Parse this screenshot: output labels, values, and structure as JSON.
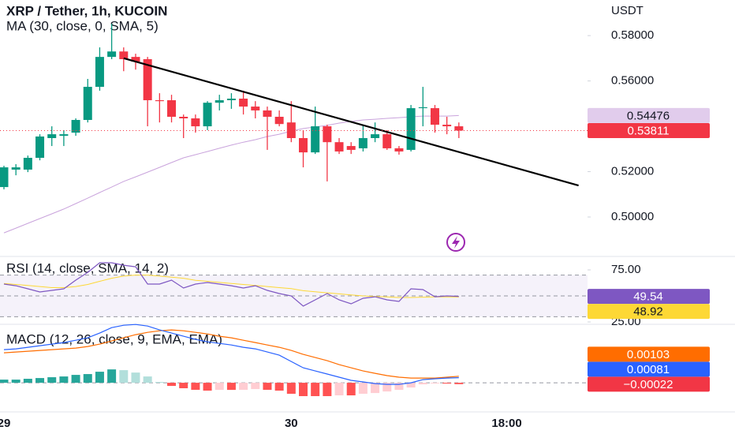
{
  "chart_data": [
    {
      "type": "candlestick",
      "title": "XRP / Tether, 1h, KUCOIN",
      "subtitle": "MA (30, close, 0, SMA, 5)",
      "y_label": "USDT",
      "categories": [
        "29",
        null,
        null,
        null,
        null,
        null,
        null,
        null,
        null,
        null,
        null,
        null,
        null,
        null,
        null,
        null,
        null,
        null,
        null,
        null,
        null,
        null,
        null,
        null,
        "30",
        null,
        null,
        null,
        null,
        null,
        null,
        null,
        null,
        null,
        null,
        null,
        null,
        null,
        null,
        null,
        null,
        null,
        "18:00",
        null,
        null,
        null,
        null,
        null,
        null
      ],
      "open": [
        0.5132,
        0.5209,
        0.5209,
        0.5261,
        0.5348,
        0.5358,
        0.5372,
        0.5428,
        0.5574,
        0.5706,
        0.573,
        0.5706,
        0.5696,
        0.5515,
        0.5515,
        0.5442,
        0.5435,
        0.54,
        0.5504,
        0.5515,
        0.5522,
        0.5487,
        0.547,
        0.5442,
        0.5417,
        0.5348,
        0.5285,
        0.54,
        0.533,
        0.5313,
        0.5303,
        0.5348,
        0.5365,
        0.5303,
        0.5296,
        0.548,
        0.548,
        0.5407,
        0.54,
        null,
        null,
        null,
        null,
        null,
        null,
        null,
        null,
        null,
        null
      ],
      "high": [
        0.5226,
        0.5233,
        0.5271,
        0.5365,
        0.54,
        0.5383,
        0.5435,
        0.5609,
        0.5748,
        0.5852,
        0.5748,
        0.572,
        0.5706,
        0.5546,
        0.5539,
        0.5452,
        0.5452,
        0.5511,
        0.5539,
        0.5546,
        0.5557,
        0.5511,
        0.5487,
        0.547,
        0.5511,
        0.5383,
        0.5487,
        0.5407,
        0.5348,
        0.533,
        0.5407,
        0.5417,
        0.5383,
        0.5313,
        0.5494,
        0.5574,
        0.5494,
        0.5442,
        0.5417,
        null,
        null,
        null,
        null,
        null,
        null,
        null,
        null,
        null,
        null
      ],
      "low": [
        0.5122,
        0.5184,
        0.5198,
        0.525,
        0.5313,
        0.5313,
        0.5358,
        0.5417,
        0.5557,
        0.5696,
        0.5643,
        0.565,
        0.54,
        0.5417,
        0.5417,
        0.5348,
        0.5372,
        0.5383,
        0.547,
        0.5477,
        0.5452,
        0.5435,
        0.5296,
        0.54,
        0.533,
        0.5219,
        0.5278,
        0.5157,
        0.5278,
        0.5278,
        0.5289,
        0.533,
        0.5296,
        0.5275,
        0.5289,
        0.54,
        0.5372,
        0.5365,
        0.5348,
        null,
        null,
        null,
        null,
        null,
        null,
        null,
        null,
        null,
        null
      ],
      "close": [
        0.5219,
        0.5219,
        0.5261,
        0.5355,
        0.5365,
        0.5365,
        0.5428,
        0.5574,
        0.5706,
        0.573,
        0.5696,
        0.5685,
        0.5515,
        0.5511,
        0.5442,
        0.5435,
        0.54,
        0.5504,
        0.5515,
        0.5522,
        0.5487,
        0.547,
        0.5442,
        0.541,
        0.5348,
        0.5285,
        0.54,
        0.533,
        0.5289,
        0.5296,
        0.5348,
        0.5365,
        0.5303,
        0.5289,
        0.548,
        0.5484,
        0.5407,
        0.54,
        0.53811,
        null,
        null,
        null,
        null,
        null,
        null,
        null,
        null,
        null,
        null
      ],
      "up_color": "#089981",
      "down_color": "#f23645",
      "ma": {
        "color": "#c9a3dc",
        "values": [
          0.493,
          0.4951,
          0.4972,
          0.4993,
          0.5014,
          0.5035,
          0.5059,
          0.5083,
          0.5108,
          0.5132,
          0.5157,
          0.5177,
          0.5198,
          0.5219,
          0.524,
          0.5261,
          0.5275,
          0.5289,
          0.5303,
          0.5317,
          0.533,
          0.5341,
          0.5355,
          0.5365,
          0.5379,
          0.539,
          0.5397,
          0.5404,
          0.5414,
          0.5421,
          0.5428,
          0.5431,
          0.5435,
          0.5438,
          0.5442,
          0.5445,
          0.5445,
          0.5445,
          0.54476,
          null,
          null,
          null,
          null,
          null,
          null,
          null,
          null,
          null,
          null
        ]
      },
      "trendline": {
        "color": "#000000",
        "x": [
          10,
          48
        ],
        "values": [
          0.57,
          0.5139
        ]
      },
      "ylim": [
        0.4826,
        0.5957
      ],
      "yticks": [
        {
          "value": 0.5,
          "label": "0.50000"
        },
        {
          "value": 0.52,
          "label": "0.52000"
        },
        {
          "value": 0.56,
          "label": "0.56000"
        },
        {
          "value": 0.58,
          "label": "0.58000"
        }
      ]
    },
    {
      "type": "line",
      "title": "RSI (14, close, SMA, 14, 2)",
      "rsi": {
        "color": "#7e57c2",
        "values": [
          61.4,
          59.8,
          56.8,
          53.8,
          55.3,
          56.8,
          65.2,
          72.7,
          81.8,
          81.8,
          79.5,
          78.0,
          61.4,
          61.4,
          65.2,
          57.6,
          61.4,
          62.9,
          61.4,
          59.8,
          57.6,
          59.8,
          55.3,
          52.3,
          50.0,
          40.2,
          46.2,
          52.3,
          46.2,
          42.4,
          47.7,
          49.2,
          46.2,
          44.7,
          56.8,
          56.1,
          49.2,
          50.0,
          49.54
        ]
      },
      "rsi_sma": {
        "color": "#fdd835",
        "values": [
          62,
          61,
          60,
          59,
          58,
          58,
          59,
          61,
          64,
          67,
          69,
          70,
          70,
          69,
          68,
          67,
          65,
          64,
          63,
          62,
          61,
          60,
          59,
          58,
          57,
          55,
          54,
          53,
          52,
          51,
          50,
          49.5,
          49,
          48.5,
          48.5,
          48.8,
          49,
          49,
          48.92
        ]
      },
      "bands": [
        70,
        50,
        30
      ],
      "band_color": "#7e57c2",
      "ylim": [
        19.7,
        87.9
      ],
      "yticks": [
        {
          "value": 25,
          "label": "25.00"
        },
        {
          "value": 75,
          "label": "75.00"
        }
      ]
    },
    {
      "type": "macd",
      "title": "MACD (12, 26, close, 9, EMA, EMA)",
      "macd": {
        "color": "#2962ff",
        "values": [
          0.00525,
          0.00538,
          0.00563,
          0.00588,
          0.00613,
          0.00638,
          0.00675,
          0.00713,
          0.00788,
          0.00875,
          0.00913,
          0.00925,
          0.009,
          0.00838,
          0.00788,
          0.00738,
          0.00688,
          0.0065,
          0.00625,
          0.006,
          0.00563,
          0.00538,
          0.00488,
          0.00438,
          0.00338,
          0.00238,
          0.00188,
          0.00138,
          0.00088,
          0.00038,
          0.00013,
          -0.00013,
          -0.00025,
          -0.00025,
          0,
          0.0005,
          0.00063,
          0.00075,
          0.00081
        ]
      },
      "signal": {
        "color": "#ff6d00",
        "values": [
          0.00475,
          0.00488,
          0.005,
          0.00513,
          0.00525,
          0.00538,
          0.0055,
          0.00575,
          0.00613,
          0.00663,
          0.00713,
          0.00763,
          0.008,
          0.00825,
          0.00838,
          0.00825,
          0.008,
          0.00775,
          0.00738,
          0.00713,
          0.00675,
          0.00638,
          0.006,
          0.00563,
          0.00513,
          0.0045,
          0.004,
          0.0035,
          0.00288,
          0.00238,
          0.00188,
          0.0015,
          0.00113,
          0.00088,
          0.00075,
          0.00075,
          0.00075,
          0.00088,
          0.00103
        ]
      },
      "histogram": {
        "colors": [
          "#26a69a",
          "#b2dfdb",
          "#ff5252",
          "#ffcdd2"
        ],
        "badge_color": "#f23645",
        "values": [
          0.0005,
          0.0005,
          0.00063,
          0.00075,
          0.00088,
          0.001,
          0.00125,
          0.00138,
          0.00175,
          0.00212,
          0.002,
          0.00162,
          0.001,
          0.00013,
          -0.0005,
          -0.00087,
          -0.00112,
          -0.00125,
          -0.00113,
          -0.00113,
          -0.00112,
          -0.001,
          -0.00112,
          -0.00125,
          -0.00175,
          -0.00212,
          -0.00212,
          -0.00212,
          -0.002,
          -0.002,
          -0.00175,
          -0.00163,
          -0.00138,
          -0.00113,
          -0.00075,
          -0.00025,
          -0.00012,
          -0.00013,
          -0.00022
        ],
        "value_labels": [
          null,
          null,
          null,
          null,
          null,
          null,
          null,
          null,
          null,
          null,
          null,
          null,
          null,
          null,
          null,
          null,
          null,
          null,
          null,
          null,
          null,
          null,
          null,
          null,
          null,
          null,
          null,
          null,
          null,
          null,
          null,
          null,
          null,
          null,
          null,
          null,
          null,
          null,
          "−0.00022"
        ]
      },
      "zero_line": true,
      "ylim": [
        -0.005,
        0.0094
      ]
    }
  ]
}
